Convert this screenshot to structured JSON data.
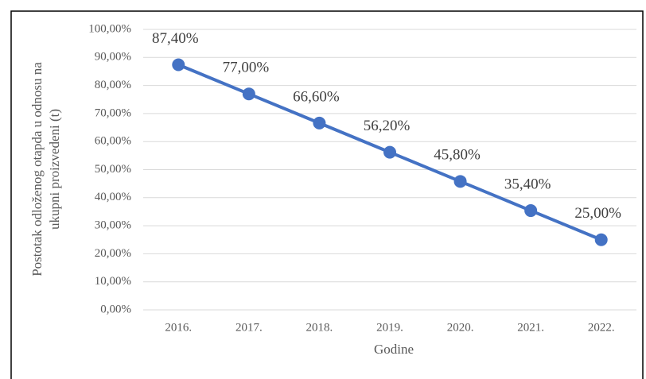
{
  "chart_data": {
    "type": "line",
    "ylabel": [
      "Postotak odloženog otapda u odnosu na",
      "ukupni proizvedeni (t)"
    ],
    "xlabel": "Godine",
    "categories": [
      "2016.",
      "2017.",
      "2018.",
      "2019.",
      "2020.",
      "2021.",
      "2022."
    ],
    "values": [
      87.4,
      77,
      66.6,
      56.2,
      45.8,
      35.4,
      25
    ],
    "value_labels": [
      "87,40%",
      "77,00%",
      "66,60%",
      "56,20%",
      "45,80%",
      "35,40%",
      "25,00%"
    ],
    "color": "#4472c4",
    "ylim": [
      0,
      100
    ],
    "yticks": [
      {
        "value": 0,
        "label": "0,00%"
      },
      {
        "value": 10,
        "label": "10,00%"
      },
      {
        "value": 20,
        "label": "20,00%"
      },
      {
        "value": 30,
        "label": "30,00%"
      },
      {
        "value": 40,
        "label": "40,00%"
      },
      {
        "value": 50,
        "label": "50,00%"
      },
      {
        "value": 60,
        "label": "60,00%"
      },
      {
        "value": 70,
        "label": "70,00%"
      },
      {
        "value": 80,
        "label": "80,00%"
      },
      {
        "value": 90,
        "label": "90,00%"
      },
      {
        "value": 100,
        "label": "100,00%"
      }
    ],
    "grid": true
  }
}
